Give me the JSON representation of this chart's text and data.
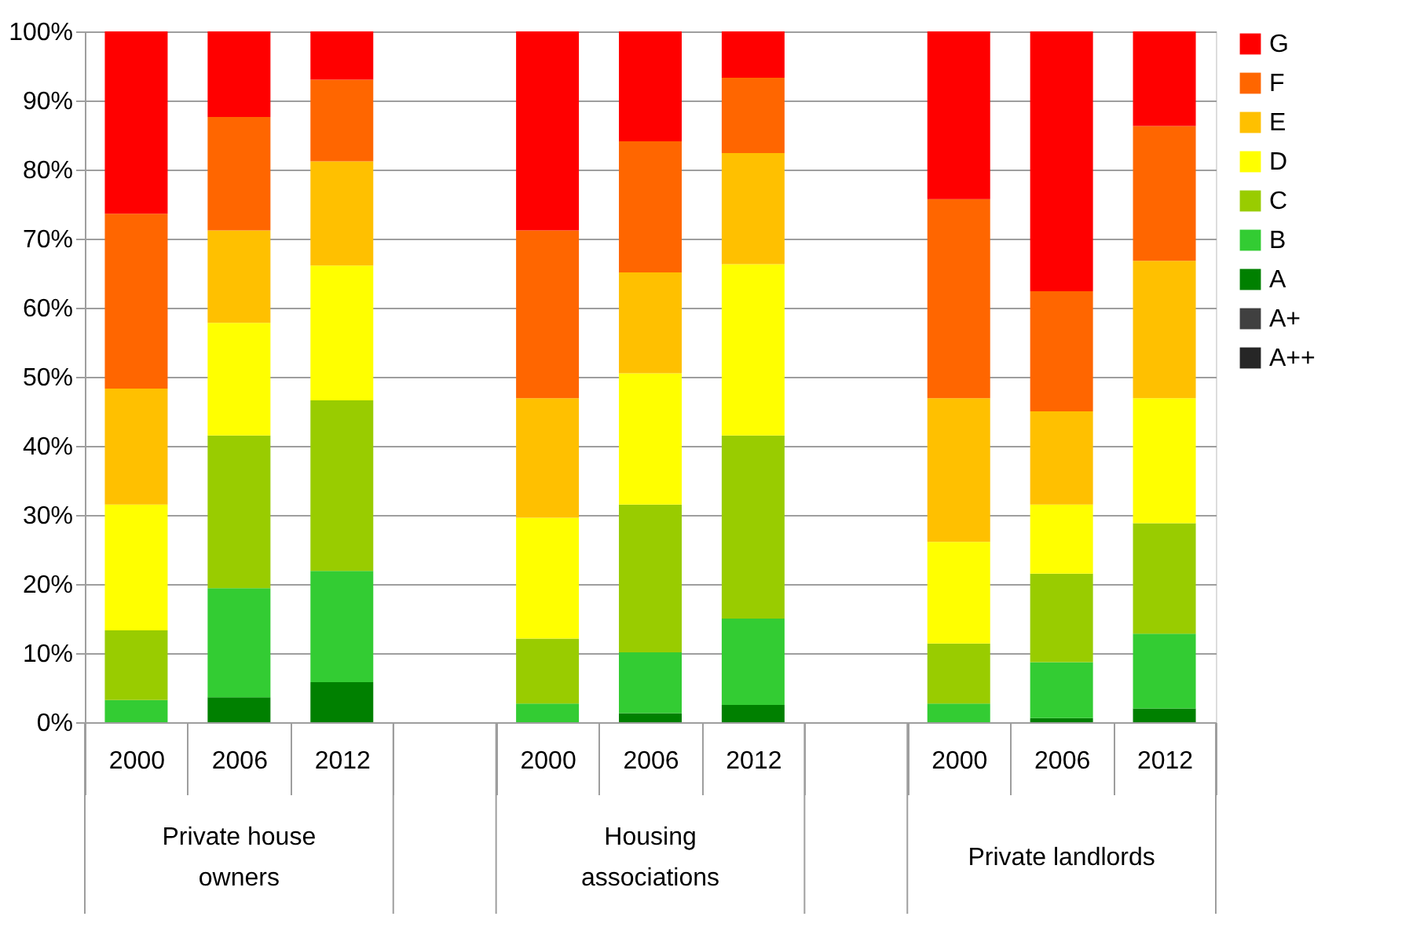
{
  "chart_data": {
    "type": "bar",
    "stacked": true,
    "categories": [
      "2000",
      "2006",
      "2012",
      null,
      "2000",
      "2006",
      "2012",
      null,
      "2000",
      "2006",
      "2012"
    ],
    "series": [
      {
        "name": "A++",
        "color": "#262626",
        "values": [
          0,
          0,
          0,
          null,
          0,
          0,
          0,
          null,
          0,
          0,
          0
        ]
      },
      {
        "name": "A+",
        "color": "#404040",
        "values": [
          0,
          0,
          0,
          null,
          0,
          0,
          0,
          null,
          0,
          0,
          0
        ]
      },
      {
        "name": "A",
        "color": "#008000",
        "values": [
          0,
          3.6,
          5.8,
          null,
          0,
          1.3,
          2.5,
          null,
          0,
          0.6,
          2.0
        ]
      },
      {
        "name": "B",
        "color": "#33cc33",
        "values": [
          3.2,
          15.8,
          16.1,
          null,
          2.7,
          8.8,
          12.5,
          null,
          2.7,
          8.1,
          10.8
        ]
      },
      {
        "name": "C",
        "color": "#99cc00",
        "values": [
          10.1,
          22.1,
          24.7,
          null,
          9.4,
          21.4,
          26.5,
          null,
          8.7,
          12.8,
          16.0
        ]
      },
      {
        "name": "D",
        "color": "#ffff00",
        "values": [
          18.2,
          16.3,
          19.5,
          null,
          17.5,
          19.0,
          24.8,
          null,
          14.7,
          10.0,
          18.1
        ]
      },
      {
        "name": "E",
        "color": "#ffc000",
        "values": [
          16.8,
          13.4,
          15.1,
          null,
          17.3,
          14.6,
          16.1,
          null,
          20.8,
          13.5,
          19.9
        ]
      },
      {
        "name": "F",
        "color": "#ff6600",
        "values": [
          25.3,
          16.4,
          11.8,
          null,
          24.3,
          19.0,
          10.9,
          null,
          28.8,
          17.4,
          19.5
        ]
      },
      {
        "name": "G",
        "color": "#ff0000",
        "values": [
          26.4,
          12.4,
          7.0,
          null,
          28.8,
          15.9,
          6.7,
          null,
          24.3,
          37.6,
          13.7
        ]
      }
    ],
    "ylim": [
      0,
      100
    ],
    "yticks": [
      {
        "value": 0,
        "label": "0%"
      },
      {
        "value": 10,
        "label": "10%"
      },
      {
        "value": 20,
        "label": "20%"
      },
      {
        "value": 30,
        "label": "30%"
      },
      {
        "value": 40,
        "label": "40%"
      },
      {
        "value": 50,
        "label": "50%"
      },
      {
        "value": 60,
        "label": "60%"
      },
      {
        "value": 70,
        "label": "70%"
      },
      {
        "value": 80,
        "label": "80%"
      },
      {
        "value": 90,
        "label": "90%"
      },
      {
        "value": 100,
        "label": "100%"
      }
    ],
    "grid": "y",
    "legend": "right",
    "annotations": [
      "Private house owners",
      "Housing associations",
      "Private landlords"
    ]
  }
}
